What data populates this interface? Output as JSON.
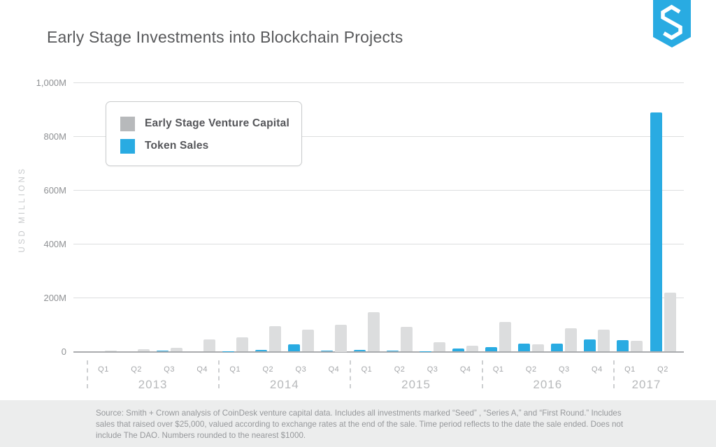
{
  "header": {
    "title": "Early Stage Investments into Blockchain Projects"
  },
  "logo": {
    "name": "smith-crown-logo",
    "color": "#29ABE2"
  },
  "colors": {
    "accent_blue": "#29ABE2",
    "bar_gray": "#DCDDDE",
    "legend_gray": "#B7B9BB",
    "grid_gray": "#DDDEDF",
    "footer_bg": "#ECEDED"
  },
  "legend": {
    "items": [
      {
        "label": "Early Stage Venture Capital",
        "color": "#B7B9BB"
      },
      {
        "label": "Token Sales",
        "color": "#29ABE2"
      }
    ]
  },
  "chart_data": {
    "type": "bar",
    "title": "Early Stage Investments into Blockchain Projects",
    "ylabel": "USD MILLIONS",
    "units": "USD millions",
    "ylim": [
      0,
      1000
    ],
    "grid": true,
    "legend_position": "upper-left",
    "yticks": [
      {
        "value": 1000,
        "label": "1,000M"
      },
      {
        "value": 800,
        "label": "800M"
      },
      {
        "value": 600,
        "label": "600M"
      },
      {
        "value": 400,
        "label": "400M"
      },
      {
        "value": 200,
        "label": "200M"
      },
      {
        "value": 0,
        "label": "0"
      }
    ],
    "series_names": [
      "Token Sales",
      "Early Stage Venture Capital"
    ],
    "years": [
      {
        "label": "2013",
        "quarters": [
          {
            "q": "Q1",
            "token_sales": 0,
            "venture_capital": 5
          },
          {
            "q": "Q2",
            "token_sales": 0,
            "venture_capital": 10
          },
          {
            "q": "Q3",
            "token_sales": 3,
            "venture_capital": 15
          },
          {
            "q": "Q4",
            "token_sales": 0,
            "venture_capital": 46
          }
        ]
      },
      {
        "label": "2014",
        "quarters": [
          {
            "q": "Q1",
            "token_sales": 2,
            "venture_capital": 54
          },
          {
            "q": "Q2",
            "token_sales": 7,
            "venture_capital": 95
          },
          {
            "q": "Q3",
            "token_sales": 28,
            "venture_capital": 82
          },
          {
            "q": "Q4",
            "token_sales": 5,
            "venture_capital": 100
          }
        ]
      },
      {
        "label": "2015",
        "quarters": [
          {
            "q": "Q1",
            "token_sales": 6,
            "venture_capital": 147
          },
          {
            "q": "Q2",
            "token_sales": 5,
            "venture_capital": 92
          },
          {
            "q": "Q3",
            "token_sales": 2,
            "venture_capital": 34
          },
          {
            "q": "Q4",
            "token_sales": 11,
            "venture_capital": 22
          }
        ]
      },
      {
        "label": "2016",
        "quarters": [
          {
            "q": "Q1",
            "token_sales": 16,
            "venture_capital": 110
          },
          {
            "q": "Q2",
            "token_sales": 29,
            "venture_capital": 27
          },
          {
            "q": "Q3",
            "token_sales": 31,
            "venture_capital": 88
          },
          {
            "q": "Q4",
            "token_sales": 45,
            "venture_capital": 81
          }
        ]
      },
      {
        "label": "2017",
        "quarters": [
          {
            "q": "Q1",
            "token_sales": 43,
            "venture_capital": 40
          },
          {
            "q": "Q2",
            "token_sales": 890,
            "venture_capital": 219
          }
        ]
      }
    ]
  },
  "footer": {
    "source_text": "Source: Smith + Crown analysis of CoinDesk venture capital data. Includes all investments marked “Seed” , “Series A,” and “First Round.”  Includes sales that raised over $25,000, valued according to exchange rates at the end of the sale. Time period reflects to the date the sale ended. Does not include The DAO. Numbers rounded to the nearest $1000."
  }
}
